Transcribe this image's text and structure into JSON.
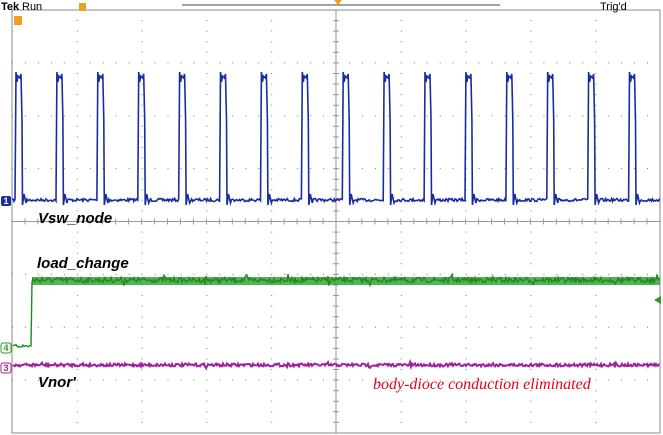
{
  "header": {
    "brand": "Tek",
    "state": "Run",
    "trigger": "Trig'd"
  },
  "channels": [
    {
      "marker": "1",
      "label": "Vsw_node"
    },
    {
      "marker": "4",
      "label": "load_change"
    },
    {
      "marker": "3",
      "label": "Vnor'"
    }
  ],
  "annotation": "body-dioce conduction eliminated"
}
